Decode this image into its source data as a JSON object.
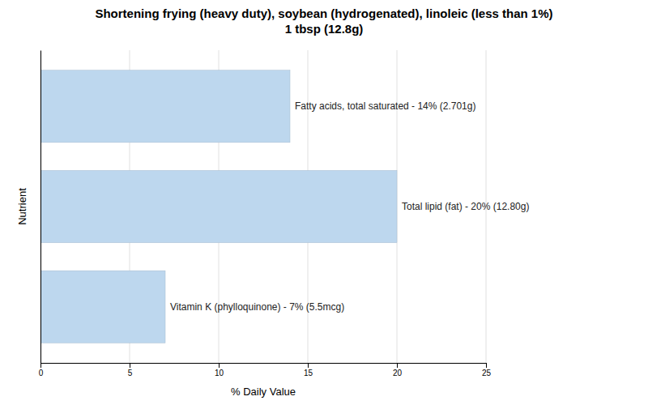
{
  "chart_data": {
    "type": "bar",
    "orientation": "horizontal",
    "title": "Shortening frying (heavy duty), soybean (hydrogenated), linoleic (less than 1%)\n1 tbsp (12.8g)",
    "xlabel": "% Daily Value",
    "ylabel": "Nutrient",
    "categories": [
      "Fatty acids, total saturated - 14% (2.701g)",
      "Total lipid (fat) - 20% (12.80g)",
      "Vitamin K (phylloquinone) - 7% (5.5mcg)"
    ],
    "values": [
      14,
      20,
      7
    ],
    "color": "#bdd7ee",
    "xlim": [
      0,
      25
    ],
    "xticks": [
      0,
      5,
      10,
      15,
      20,
      25
    ],
    "grid": true,
    "tick_labels": "x"
  }
}
